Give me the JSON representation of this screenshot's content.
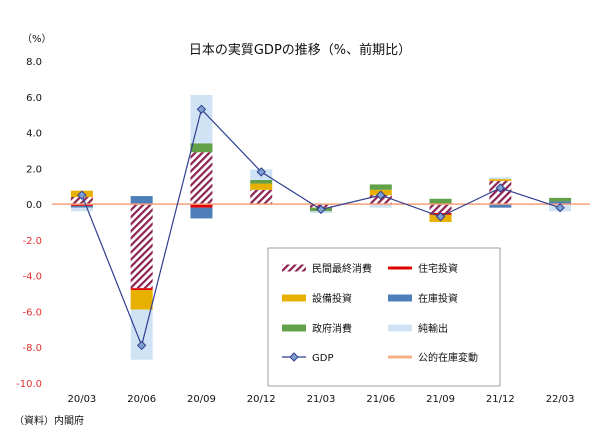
{
  "chart_data": {
    "type": "bar",
    "title": "日本の実質GDPの推移（%、前期比）",
    "unit_label": "（%）",
    "source_label": "（資料）内閣府",
    "categories": [
      "20/03",
      "20/06",
      "20/09",
      "20/12",
      "21/03",
      "21/06",
      "21/09",
      "21/12",
      "22/03"
    ],
    "ylim": [
      -10,
      8
    ],
    "yticks": [
      "8.0",
      "6.0",
      "4.0",
      "2.0",
      "0.0",
      "-2.0",
      "-4.0",
      "-6.0",
      "-8.0",
      "-10.0"
    ],
    "series": [
      {
        "name": "民間最終消費",
        "kind": "bar",
        "pattern": "hatch",
        "color": "#8b2252",
        "values": [
          0.4,
          -4.7,
          2.9,
          0.8,
          -0.2,
          0.5,
          -0.5,
          1.3,
          0.0
        ]
      },
      {
        "name": "住宅投資",
        "kind": "bar",
        "color": "#e00000",
        "values": [
          -0.1,
          -0.1,
          -0.2,
          0.0,
          0.0,
          0.0,
          -0.1,
          0.0,
          0.0
        ]
      },
      {
        "name": "設備投資",
        "kind": "bar",
        "color": "#e8b000",
        "values": [
          0.35,
          -1.1,
          0.0,
          0.35,
          0.0,
          0.3,
          -0.4,
          0.1,
          0.0
        ]
      },
      {
        "name": "在庫投資",
        "kind": "bar",
        "color": "#4f7fb8",
        "values": [
          -0.1,
          0.45,
          -0.6,
          0.0,
          0.0,
          0.0,
          0.0,
          -0.2,
          0.15
        ]
      },
      {
        "name": "政府消費",
        "kind": "bar",
        "color": "#63a04a",
        "values": [
          0.0,
          0.0,
          0.5,
          0.2,
          -0.2,
          0.3,
          0.3,
          0.0,
          0.2
        ]
      },
      {
        "name": "純輸出",
        "kind": "bar",
        "color": "#cfe3f5",
        "values": [
          -0.2,
          -2.8,
          2.7,
          0.6,
          -0.1,
          -0.2,
          0.0,
          0.1,
          -0.4
        ]
      },
      {
        "name": "GDP",
        "kind": "line",
        "color": "#2f3f8f",
        "values": [
          0.5,
          -7.9,
          5.3,
          1.8,
          -0.3,
          0.5,
          -0.7,
          0.9,
          -0.2
        ]
      },
      {
        "name": "公的在庫変動",
        "kind": "bar",
        "color": "#f4b183",
        "values": [
          0.0,
          0.0,
          0.0,
          0.0,
          0.0,
          0.0,
          0.0,
          0.0,
          0.0
        ]
      }
    ],
    "legend_position": "bottom-right inside plot",
    "grid": false
  }
}
